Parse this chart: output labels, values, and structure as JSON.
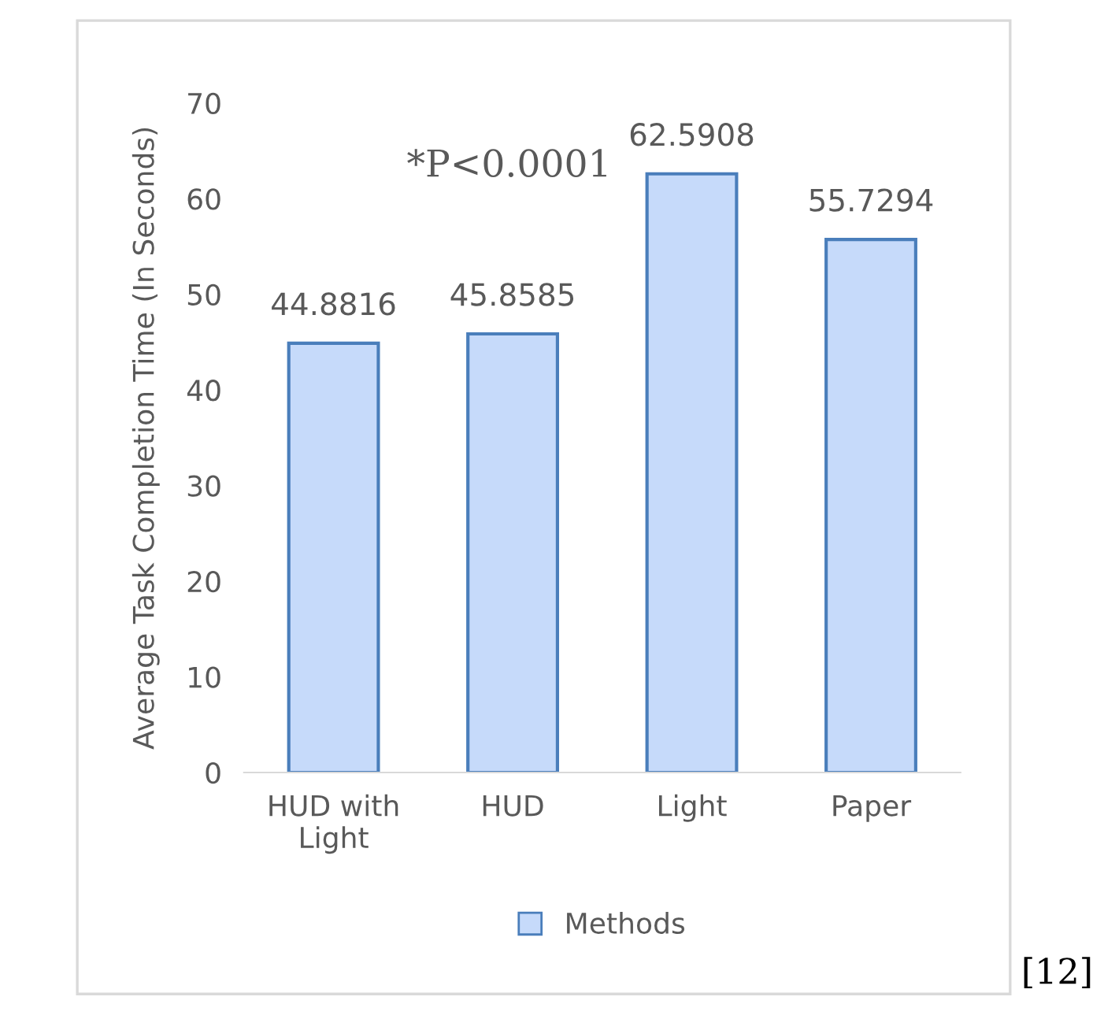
{
  "chart_data": {
    "type": "bar",
    "ylabel": "Average Task Completion Time (In Seconds)",
    "categories": [
      "HUD with\nLight",
      "HUD",
      "Light",
      "Paper"
    ],
    "series": [
      {
        "name": "Methods",
        "color": "#c6dafa",
        "values": [
          44.8816,
          45.8585,
          62.5908,
          55.7294
        ]
      }
    ],
    "ylim": [
      0,
      70
    ],
    "yticks": [
      0,
      10,
      20,
      30,
      40,
      50,
      60,
      70
    ],
    "data_labels": true,
    "grid": false,
    "legend": "bottom",
    "annotations": [
      "*P<0.0001",
      "[12]"
    ]
  }
}
